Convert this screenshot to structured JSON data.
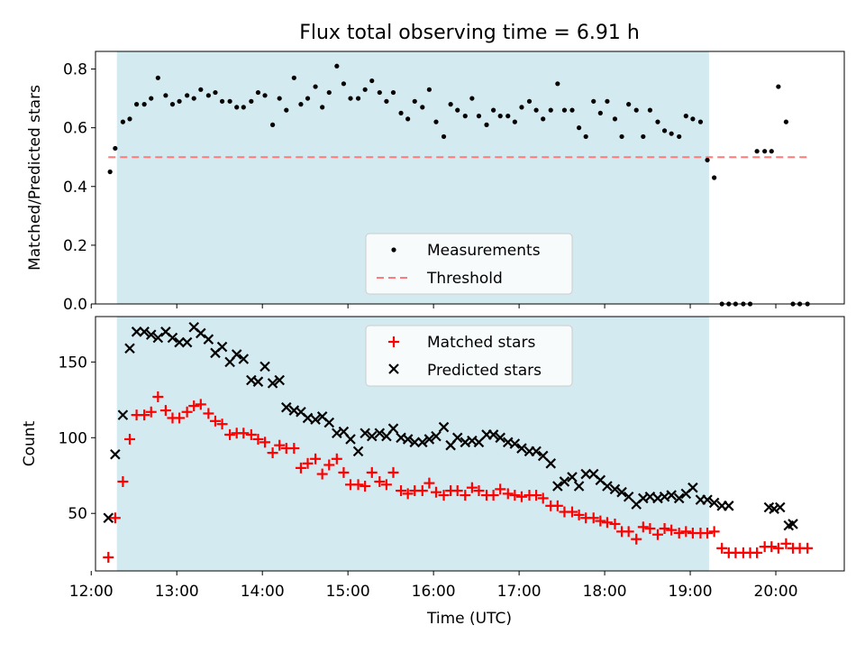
{
  "title": "Flux total observing time = 6.91 h",
  "colors": {
    "shade": "#d4eaf1",
    "matched": "#ff0000",
    "predicted": "#000000",
    "measurements": "#000000",
    "threshold": "#ff7a7a"
  },
  "chart_data": [
    {
      "type": "scatter",
      "ylabel": "Matched/Predicted stars",
      "xlim": [
        12.05,
        20.8
      ],
      "ylim": [
        0,
        0.86
      ],
      "yticks": [
        0.0,
        0.2,
        0.4,
        0.6,
        0.8
      ],
      "ytick_labels": [
        "0.0",
        "0.2",
        "0.4",
        "0.6",
        "0.8"
      ],
      "observing_window": [
        12.3,
        19.22
      ],
      "threshold": 0.5,
      "threshold_range": [
        12.2,
        20.4
      ],
      "legend": {
        "placement": "lower-center",
        "entries": [
          "Measurements",
          "Threshold"
        ]
      },
      "series": [
        {
          "name": "Measurements",
          "marker": "dot",
          "x": [
            12.22,
            12.28,
            12.37,
            12.45,
            12.53,
            12.62,
            12.7,
            12.78,
            12.87,
            12.95,
            13.03,
            13.12,
            13.2,
            13.28,
            13.37,
            13.45,
            13.53,
            13.62,
            13.7,
            13.78,
            13.87,
            13.95,
            14.03,
            14.12,
            14.2,
            14.28,
            14.37,
            14.45,
            14.53,
            14.62,
            14.7,
            14.78,
            14.87,
            14.95,
            15.03,
            15.12,
            15.2,
            15.28,
            15.37,
            15.45,
            15.53,
            15.62,
            15.7,
            15.78,
            15.87,
            15.95,
            16.03,
            16.12,
            16.2,
            16.28,
            16.37,
            16.45,
            16.53,
            16.62,
            16.7,
            16.78,
            16.87,
            16.95,
            17.03,
            17.12,
            17.2,
            17.28,
            17.37,
            17.45,
            17.53,
            17.62,
            17.7,
            17.78,
            17.87,
            17.95,
            18.03,
            18.12,
            18.2,
            18.28,
            18.37,
            18.45,
            18.53,
            18.62,
            18.7,
            18.78,
            18.87,
            18.95,
            19.03,
            19.12,
            19.2,
            19.28,
            19.37,
            19.45,
            19.53,
            19.62,
            19.7,
            19.78,
            19.87,
            19.95,
            20.03,
            20.12,
            20.2,
            20.28,
            20.37
          ],
          "y": [
            0.45,
            0.53,
            0.62,
            0.63,
            0.68,
            0.68,
            0.7,
            0.77,
            0.71,
            0.68,
            0.69,
            0.71,
            0.7,
            0.73,
            0.71,
            0.72,
            0.69,
            0.69,
            0.67,
            0.67,
            0.69,
            0.72,
            0.71,
            0.61,
            0.7,
            0.66,
            0.77,
            0.68,
            0.7,
            0.74,
            0.67,
            0.72,
            0.81,
            0.75,
            0.7,
            0.7,
            0.73,
            0.76,
            0.72,
            0.69,
            0.72,
            0.65,
            0.63,
            0.69,
            0.67,
            0.73,
            0.62,
            0.57,
            0.68,
            0.66,
            0.64,
            0.7,
            0.64,
            0.61,
            0.66,
            0.64,
            0.64,
            0.62,
            0.67,
            0.69,
            0.66,
            0.63,
            0.66,
            0.75,
            0.66,
            0.66,
            0.6,
            0.57,
            0.69,
            0.65,
            0.69,
            0.63,
            0.57,
            0.68,
            0.66,
            0.57,
            0.66,
            0.62,
            0.59,
            0.58,
            0.57,
            0.64,
            0.63,
            0.62,
            0.49,
            0.43,
            0,
            0,
            0,
            0,
            0,
            0.52,
            0.52,
            0.52,
            0.74,
            0.62,
            0,
            0,
            0
          ]
        }
      ]
    },
    {
      "type": "scatter",
      "xlabel": "Time (UTC)",
      "ylabel": "Count",
      "xlim": [
        12.05,
        20.8
      ],
      "ylim": [
        12,
        180
      ],
      "yticks": [
        50,
        100,
        150
      ],
      "ytick_labels": [
        "50",
        "100",
        "150"
      ],
      "xticks": [
        12,
        13,
        14,
        15,
        16,
        17,
        18,
        19,
        20
      ],
      "xtick_labels": [
        "12:00",
        "13:00",
        "14:00",
        "15:00",
        "16:00",
        "17:00",
        "18:00",
        "19:00",
        "20:00"
      ],
      "observing_window": [
        12.3,
        19.22
      ],
      "legend": {
        "placement": "upper-center",
        "entries": [
          "Matched stars",
          "Predicted stars"
        ]
      },
      "series": [
        {
          "name": "Matched stars",
          "marker": "plus",
          "x": [
            12.2,
            12.28,
            12.37,
            12.45,
            12.53,
            12.62,
            12.7,
            12.78,
            12.87,
            12.95,
            13.03,
            13.12,
            13.2,
            13.28,
            13.37,
            13.45,
            13.53,
            13.62,
            13.7,
            13.78,
            13.87,
            13.95,
            14.03,
            14.12,
            14.2,
            14.28,
            14.37,
            14.45,
            14.53,
            14.62,
            14.7,
            14.78,
            14.87,
            14.95,
            15.03,
            15.12,
            15.2,
            15.28,
            15.37,
            15.45,
            15.53,
            15.62,
            15.7,
            15.78,
            15.87,
            15.95,
            16.03,
            16.12,
            16.2,
            16.28,
            16.37,
            16.45,
            16.53,
            16.62,
            16.7,
            16.78,
            16.87,
            16.95,
            17.03,
            17.12,
            17.2,
            17.28,
            17.37,
            17.45,
            17.53,
            17.62,
            17.7,
            17.78,
            17.87,
            17.95,
            18.03,
            18.12,
            18.2,
            18.28,
            18.37,
            18.45,
            18.53,
            18.62,
            18.7,
            18.78,
            18.87,
            18.95,
            19.03,
            19.12,
            19.2,
            19.28,
            19.37,
            19.45,
            19.53,
            19.62,
            19.7,
            19.78,
            19.87,
            19.95,
            20.03,
            20.12,
            20.2,
            20.28,
            20.37
          ],
          "y": [
            21,
            47,
            71,
            99,
            115,
            115,
            117,
            127,
            118,
            113,
            113,
            117,
            121,
            122,
            116,
            111,
            109,
            102,
            103,
            103,
            102,
            99,
            97,
            90,
            95,
            93,
            93,
            80,
            83,
            86,
            76,
            82,
            86,
            77,
            69,
            69,
            68,
            77,
            71,
            69,
            77,
            65,
            63,
            65,
            65,
            70,
            64,
            62,
            65,
            65,
            62,
            67,
            65,
            62,
            62,
            66,
            63,
            62,
            61,
            62,
            62,
            60,
            55,
            55,
            51,
            51,
            49,
            47,
            47,
            45,
            44,
            43,
            38,
            38,
            33,
            41,
            40,
            36,
            40,
            39,
            37,
            38,
            37,
            37,
            37,
            38,
            27,
            24,
            24,
            24,
            24,
            24,
            28,
            28,
            27,
            30,
            27,
            27,
            27
          ]
        },
        {
          "name": "Predicted stars",
          "marker": "x",
          "x": [
            12.2,
            12.28,
            12.37,
            12.45,
            12.53,
            12.62,
            12.7,
            12.78,
            12.87,
            12.95,
            13.03,
            13.12,
            13.2,
            13.28,
            13.37,
            13.45,
            13.53,
            13.62,
            13.7,
            13.78,
            13.87,
            13.95,
            14.03,
            14.12,
            14.2,
            14.28,
            14.37,
            14.45,
            14.53,
            14.62,
            14.7,
            14.78,
            14.87,
            14.95,
            15.03,
            15.12,
            15.2,
            15.28,
            15.37,
            15.45,
            15.53,
            15.62,
            15.7,
            15.78,
            15.87,
            15.95,
            16.03,
            16.12,
            16.2,
            16.28,
            16.37,
            16.45,
            16.53,
            16.62,
            16.7,
            16.78,
            16.87,
            16.95,
            17.03,
            17.12,
            17.2,
            17.28,
            17.37,
            17.45,
            17.53,
            17.62,
            17.7,
            17.78,
            17.87,
            17.95,
            18.03,
            18.12,
            18.2,
            18.28,
            18.37,
            18.45,
            18.53,
            18.62,
            18.7,
            18.78,
            18.87,
            18.95,
            19.03,
            19.12,
            19.2,
            19.28,
            19.37,
            19.45,
            19.92,
            19.98,
            20.05,
            20.15,
            20.2
          ],
          "y": [
            47,
            89,
            115,
            159,
            170,
            170,
            168,
            166,
            170,
            166,
            163,
            163,
            173,
            169,
            165,
            156,
            160,
            150,
            155,
            152,
            138,
            137,
            147,
            136,
            138,
            120,
            118,
            117,
            113,
            112,
            114,
            110,
            103,
            104,
            99,
            91,
            103,
            101,
            103,
            101,
            106,
            100,
            99,
            97,
            97,
            99,
            101,
            107,
            95,
            100,
            97,
            98,
            97,
            102,
            102,
            100,
            97,
            96,
            93,
            91,
            91,
            88,
            83,
            68,
            71,
            74,
            68,
            76,
            76,
            72,
            68,
            66,
            64,
            61,
            56,
            60,
            61,
            60,
            61,
            62,
            60,
            63,
            67,
            59,
            59,
            57,
            55,
            55,
            54,
            53,
            54,
            42,
            43
          ]
        }
      ]
    }
  ]
}
